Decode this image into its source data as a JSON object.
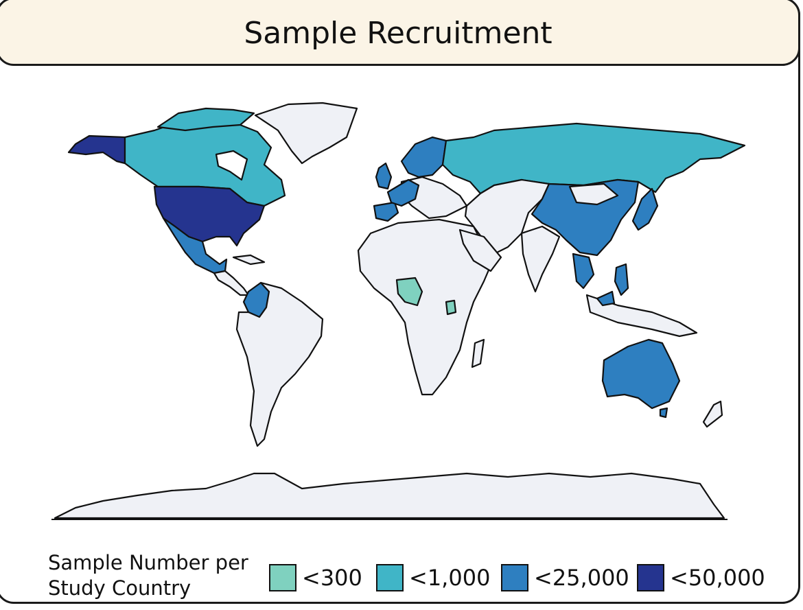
{
  "title": "Sample Recruitment",
  "legend": {
    "title": "Sample Number per\nStudy Country",
    "bins": [
      {
        "label": "<300",
        "color": "#7fd1bf"
      },
      {
        "label": "<1,000",
        "color": "#40b5c7"
      },
      {
        "label": "<25,000",
        "color": "#2e7fc0"
      },
      {
        "label": "<50,000",
        "color": "#25348f"
      }
    ]
  },
  "colors": {
    "no_data": "#eff1f6",
    "border": "#111111",
    "banner": "#fbf4e6"
  },
  "countries": {
    "lt_50000": [
      "United States",
      "Alaska (United States)"
    ],
    "lt_25000": [
      "China",
      "Mexico",
      "Colombia",
      "Australia",
      "Japan",
      "Thailand",
      "Philippines",
      "United Kingdom",
      "Spain",
      "Germany",
      "Sweden",
      "Norway",
      "Finland",
      "Malaysia"
    ],
    "lt_1000": [
      "Canada",
      "Russia"
    ],
    "lt_300": [
      "Nigeria",
      "Uganda"
    ]
  }
}
